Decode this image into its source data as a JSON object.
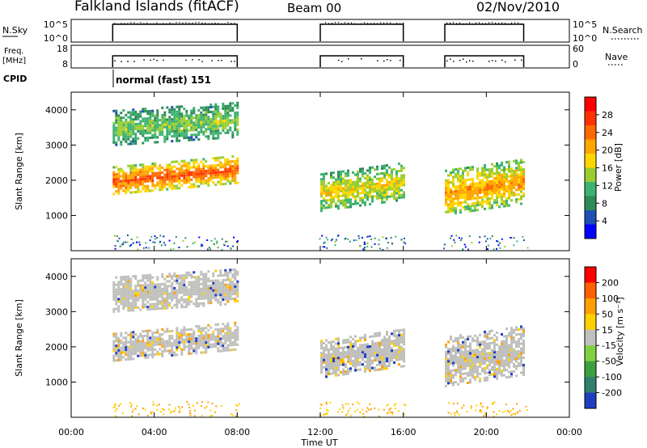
{
  "header": {
    "station": "Falkland Islands (fitACF)",
    "beam": "Beam 00",
    "date": "02/Nov/2010"
  },
  "panels": {
    "nsky_label": "N.Sky",
    "nsky_ticks": [
      "10^5",
      "10^0"
    ],
    "nsearch_label": "N.Search",
    "nsearch_ticks": [
      "10^5",
      "10^0"
    ],
    "freq_label": "Freq.",
    "freq_unit": "[MHz]",
    "freq_ticks": [
      "18",
      "8"
    ],
    "nave_label": "Nave",
    "nave_ticks": [
      "60",
      "0"
    ],
    "cpid_label": "CPID",
    "cpid_mode": "normal (fast) 151"
  },
  "colors": {
    "power_scale": [
      "#0000ff",
      "#1e4fb4",
      "#2e8b57",
      "#3cb371",
      "#9acd32",
      "#ffd700",
      "#ffa500",
      "#ff6a00",
      "#ff3300",
      "#ff0000"
    ],
    "velocity_scale": [
      "#1f3fbf",
      "#2f7f6f",
      "#3da040",
      "#80d040",
      "#c0c0c0",
      "#ffd000",
      "#ffa000",
      "#ff6000",
      "#ff0000"
    ],
    "ground_scatter": "#bfbfbc"
  },
  "chart_data": [
    {
      "type": "heatmap",
      "name": "power",
      "ylabel": "Slant Range [km]",
      "yticks": [
        "4000",
        "3000",
        "2000",
        "1000"
      ],
      "ylim": [
        0,
        4500
      ],
      "colorbar_label": "Power [dB]",
      "colorbar_ticks": [
        "28",
        "24",
        "20",
        "16",
        "12",
        "8",
        "4"
      ],
      "clim": [
        0,
        32
      ],
      "bands": [
        {
          "t0": 2.0,
          "t1": 8.0,
          "r_lo": 1600,
          "r_hi": 2400,
          "level": 26
        },
        {
          "t0": 2.0,
          "t1": 8.0,
          "r_lo": 3000,
          "r_hi": 4000,
          "level": 14
        },
        {
          "t0": 12.0,
          "t1": 16.0,
          "r_lo": 1100,
          "r_hi": 2200,
          "level": 18
        },
        {
          "t0": 18.0,
          "t1": 21.8,
          "r_lo": 1000,
          "r_hi": 2300,
          "level": 22
        }
      ]
    },
    {
      "type": "heatmap",
      "name": "velocity",
      "ylabel": "Slant Range [km]",
      "yticks": [
        "4000",
        "3000",
        "2000",
        "1000"
      ],
      "ylim": [
        0,
        4500
      ],
      "colorbar_label": "Velocity [m s⁻¹]",
      "colorbar_ticks": [
        "200",
        "100",
        "50",
        "15",
        "-15",
        "-50",
        "-100",
        "-200"
      ],
      "clim": [
        -250,
        250
      ],
      "bands": [
        {
          "t0": 2.0,
          "t1": 8.0,
          "r_lo": 1600,
          "r_hi": 2400,
          "level": 0
        },
        {
          "t0": 2.0,
          "t1": 8.0,
          "r_lo": 3000,
          "r_hi": 4000,
          "level": 0
        },
        {
          "t0": 12.0,
          "t1": 16.0,
          "r_lo": 1100,
          "r_hi": 2200,
          "level": 0
        },
        {
          "t0": 18.0,
          "t1": 21.8,
          "r_lo": 900,
          "r_hi": 2300,
          "level": 0
        }
      ]
    }
  ],
  "time_axis": {
    "xlabel": "Time UT",
    "ticks": [
      "00:00",
      "04:00",
      "08:00",
      "12:00",
      "16:00",
      "20:00",
      "00:00"
    ],
    "xlim": [
      0,
      24
    ]
  }
}
